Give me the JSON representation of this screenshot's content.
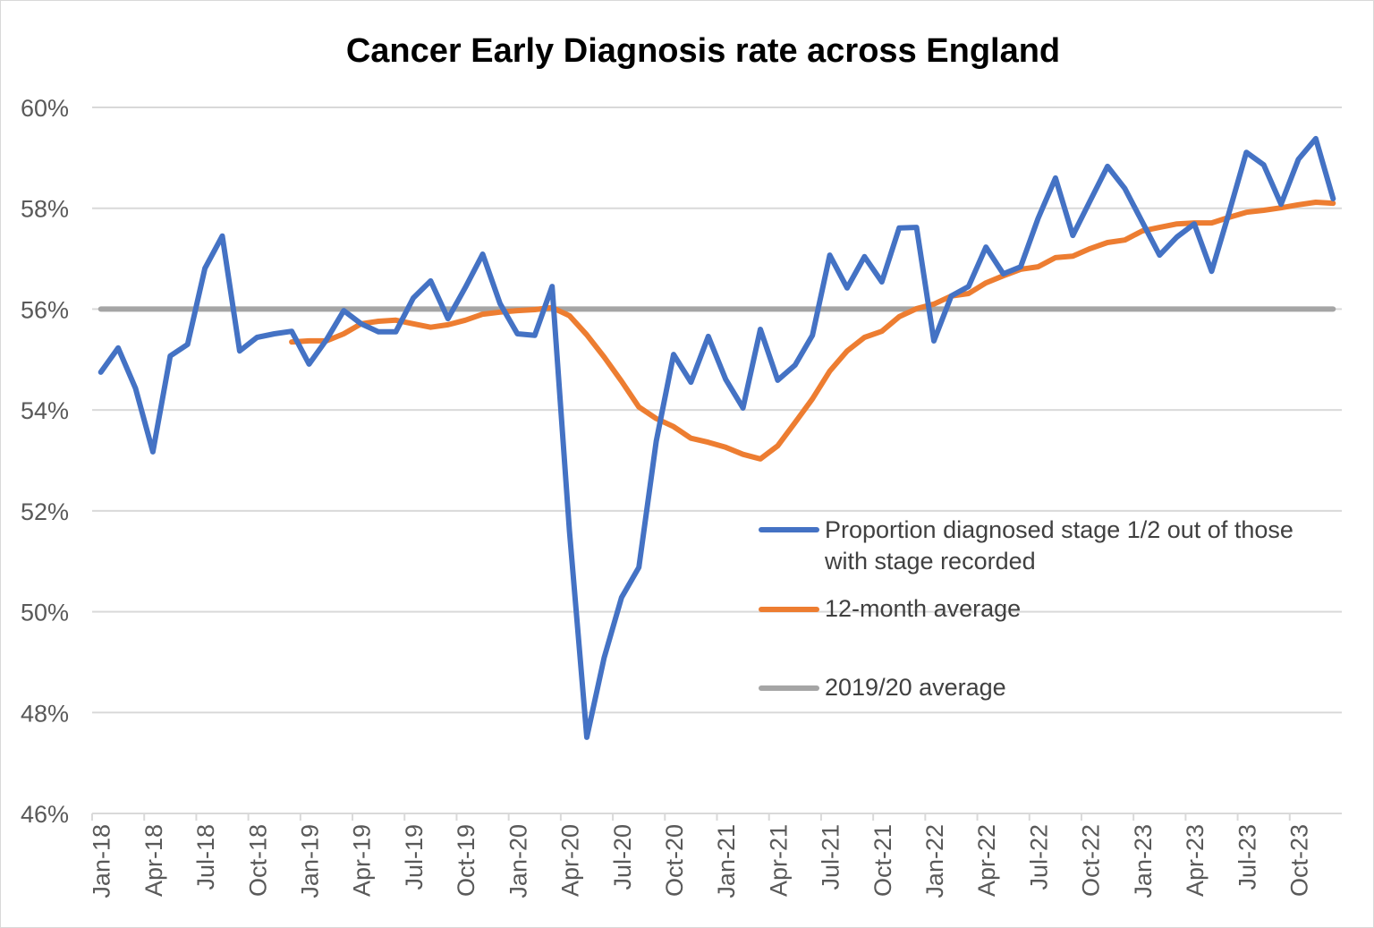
{
  "chart_data": {
    "type": "line",
    "title": "Cancer Early Diagnosis rate across England",
    "xlabel": "",
    "ylabel": "",
    "ylim": [
      46,
      60
    ],
    "yticks": [
      "46%",
      "48%",
      "50%",
      "52%",
      "54%",
      "56%",
      "58%",
      "60%"
    ],
    "grid": true,
    "legend_position": "right-middle",
    "xtick_labels": [
      "Jan-18",
      "Apr-18",
      "Jul-18",
      "Oct-18",
      "Jan-19",
      "Apr-19",
      "Jul-19",
      "Oct-19",
      "Jan-20",
      "Apr-20",
      "Jul-20",
      "Oct-20",
      "Jan-21",
      "Apr-21",
      "Jul-21",
      "Oct-21",
      "Jan-22",
      "Apr-22",
      "Jul-22",
      "Oct-22",
      "Jan-23",
      "Apr-23",
      "Jul-23",
      "Oct-23"
    ],
    "x_start": "Jan-18",
    "x_end": "Dec-23",
    "series": [
      {
        "name": "Proportion diagnosed stage 1/2 out of those with stage recorded",
        "color": "#4472c4",
        "values": [
          54.75,
          55.23,
          54.43,
          53.17,
          55.07,
          55.3,
          56.81,
          57.45,
          55.17,
          55.44,
          55.51,
          55.56,
          54.91,
          55.39,
          55.97,
          55.71,
          55.55,
          55.55,
          56.22,
          56.56,
          55.81,
          56.43,
          57.09,
          56.11,
          55.51,
          55.48,
          56.45,
          51.6,
          47.51,
          49.09,
          50.28,
          50.88,
          53.38,
          55.1,
          54.55,
          55.46,
          54.61,
          54.04,
          55.6,
          54.59,
          54.89,
          55.48,
          57.07,
          56.42,
          57.04,
          56.54,
          57.61,
          57.62,
          55.37,
          56.26,
          56.45,
          57.23,
          56.7,
          56.84,
          57.8,
          58.6,
          57.46,
          58.15,
          58.83,
          58.39,
          57.73,
          57.07,
          57.43,
          57.69,
          56.75,
          57.91,
          59.11,
          58.86,
          58.08,
          58.97,
          59.38,
          58.19
        ]
      },
      {
        "name": "12-month average",
        "color": "#ed7d31",
        "values": [
          null,
          null,
          null,
          null,
          null,
          null,
          null,
          null,
          null,
          null,
          null,
          55.35,
          55.37,
          55.37,
          55.51,
          55.71,
          55.76,
          55.78,
          55.71,
          55.64,
          55.69,
          55.78,
          55.9,
          55.94,
          55.97,
          55.99,
          56.03,
          55.87,
          55.49,
          55.05,
          54.57,
          54.06,
          53.83,
          53.67,
          53.44,
          53.36,
          53.26,
          53.12,
          53.03,
          53.29,
          53.75,
          54.22,
          54.77,
          55.17,
          55.44,
          55.56,
          55.85,
          56.01,
          56.1,
          56.26,
          56.31,
          56.52,
          56.66,
          56.79,
          56.84,
          57.02,
          57.05,
          57.2,
          57.32,
          57.37,
          57.55,
          57.62,
          57.69,
          57.71,
          57.71,
          57.82,
          57.92,
          57.96,
          58.01,
          58.07,
          58.12,
          58.1
        ]
      },
      {
        "name": "2019/20 average",
        "color": "#a5a5a5",
        "values": [
          56,
          56,
          56,
          56,
          56,
          56,
          56,
          56,
          56,
          56,
          56,
          56,
          56,
          56,
          56,
          56,
          56,
          56,
          56,
          56,
          56,
          56,
          56,
          56,
          56,
          56,
          56,
          56,
          56,
          56,
          56,
          56,
          56,
          56,
          56,
          56,
          56,
          56,
          56,
          56,
          56,
          56,
          56,
          56,
          56,
          56,
          56,
          56,
          56,
          56,
          56,
          56,
          56,
          56,
          56,
          56,
          56,
          56,
          56,
          56,
          56,
          56,
          56,
          56,
          56,
          56,
          56,
          56,
          56,
          56,
          56,
          56
        ]
      }
    ]
  },
  "legend": {
    "item1_line1": "Proportion diagnosed stage 1/2 out of those",
    "item1_line2": "with stage recorded",
    "item2": "12-month average",
    "item3": "2019/20 average"
  }
}
